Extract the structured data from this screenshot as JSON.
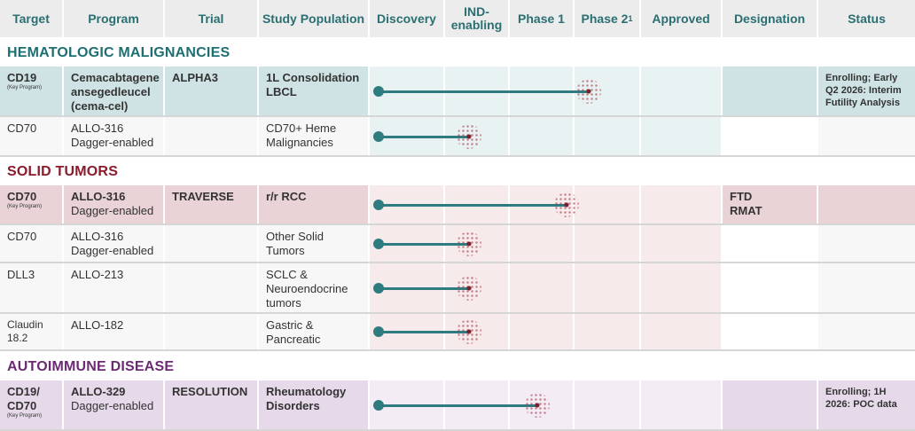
{
  "columns": [
    "Target",
    "Program",
    "Trial",
    "Study Population",
    "Discovery",
    "IND-\nenabling",
    "Phase 1",
    "Phase 2",
    "Approved",
    "Designation",
    "Status"
  ],
  "phase2_footnote": "1",
  "sections": {
    "heme": {
      "title": "HEMATOLOGIC MALIGNANCIES",
      "color": "#1e6f72"
    },
    "solid": {
      "title": "SOLID TUMORS",
      "color": "#8b1a2b"
    },
    "auto": {
      "title": "AUTOIMMUNE DISEASE",
      "color": "#6b2a72"
    }
  },
  "key_program_label": "(Key Program)",
  "rows": [
    {
      "target": "CD19",
      "key_program": true,
      "program": "Cemacabtagene ansegedleucel (cema-cel)",
      "program_sub": "",
      "trial": "ALPHA3",
      "population": "1L Consolidation LBCL",
      "designation": "",
      "status": "Enrolling; Early Q2 2026: Interim Futility Analysis",
      "progress_phase": 3.25,
      "section": "heme",
      "highlight": true
    },
    {
      "target": "CD70",
      "key_program": false,
      "program": "ALLO-316",
      "program_sub": "Dagger-enabled",
      "trial": "",
      "population": "CD70+ Heme Malignancies",
      "designation": "",
      "status": "",
      "progress_phase": 1.4,
      "section": "heme",
      "highlight": false
    },
    {
      "target": "CD70",
      "key_program": true,
      "program": "ALLO-316",
      "program_sub": "Dagger-enabled",
      "trial": "TRAVERSE",
      "population": "r/r RCC",
      "designation": "FTD\nRMAT",
      "status": "",
      "progress_phase": 2.9,
      "section": "solid",
      "highlight": true
    },
    {
      "target": "CD70",
      "key_program": false,
      "program": "ALLO-316",
      "program_sub": "Dagger-enabled",
      "trial": "",
      "population": "Other Solid Tumors",
      "designation": "",
      "status": "",
      "progress_phase": 1.4,
      "section": "solid",
      "highlight": false
    },
    {
      "target": "DLL3",
      "key_program": false,
      "program": "ALLO-213",
      "program_sub": "",
      "trial": "",
      "population": "SCLC & Neuroendocrine tumors",
      "designation": "",
      "status": "",
      "progress_phase": 1.4,
      "section": "solid",
      "highlight": false
    },
    {
      "target": "Claudin 18.2",
      "key_program": false,
      "program": "ALLO-182",
      "program_sub": "",
      "trial": "",
      "population": "Gastric & Pancreatic",
      "designation": "",
      "status": "",
      "progress_phase": 1.4,
      "section": "solid",
      "highlight": false
    },
    {
      "target": "CD19/ CD70",
      "key_program": true,
      "program": "ALLO-329",
      "program_sub": "Dagger-enabled",
      "trial": "RESOLUTION",
      "population": "Rheumatology Disorders",
      "designation": "",
      "status": "Enrolling; 1H 2026: POC data",
      "progress_phase": 2.45,
      "section": "auto",
      "highlight": true
    }
  ]
}
